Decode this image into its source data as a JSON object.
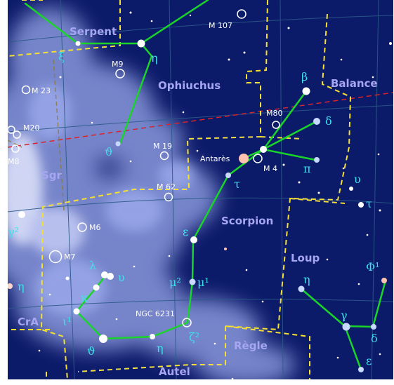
{
  "map": {
    "colors": {
      "sky": "#0c1a6a",
      "milky_way": "#9aa8ea",
      "constellation_line": "#19d52a",
      "boundary": "#f5e033",
      "ecliptic": "#d8242a",
      "grid": "#2c5a88",
      "constellation_label": "#a6a6f2",
      "greek_label": "#3ee0ea",
      "antares": "#ffc3b0"
    },
    "constellations": {
      "serpent": "Serpent",
      "ophiuchus": "Ophiuchus",
      "balance": "Balance",
      "sgr": "Sgr",
      "scorpion": "Scorpion",
      "loup": "Loup",
      "cra": "CrA",
      "regle": "Règle",
      "autel": "Autel"
    },
    "deep_sky": {
      "m107": "M 107",
      "m9": "M9",
      "m23": "M 23",
      "m20": "M20",
      "m8": "M8",
      "m80": "M80",
      "m19": "M 19",
      "m4": "M 4",
      "m62": "M 62",
      "m6": "M6",
      "m7": "M7",
      "ngc6231": "NGC 6231"
    },
    "stars": {
      "antares": "Antarès",
      "xi_ser": "ξ",
      "eta_oph": "η",
      "theta_oph": "ϑ",
      "beta_sco": "β",
      "delta_sco": "δ",
      "pi_sco": "π",
      "tau_sco": "τ",
      "epsilon_sco": "ε",
      "mu2_sco": "μ²",
      "mu1_sco": "μ¹",
      "zeta2_sco": "ζ²",
      "eta_sco": "η",
      "theta_sco": "ϑ",
      "iota1_sco": "ι¹",
      "kappa_sco": "κ",
      "lambda_sco": "λ",
      "upsilon_sco": "υ",
      "gamma2_sgr": "γ²",
      "eta_sgr": "η",
      "eta_lup": "η",
      "gamma_lup": "γ",
      "delta_lup": "δ",
      "epsilon_lup": "ε",
      "phi1_lup": "Φ¹",
      "upsilon_lib": "υ",
      "tau_lib": "τ"
    }
  }
}
